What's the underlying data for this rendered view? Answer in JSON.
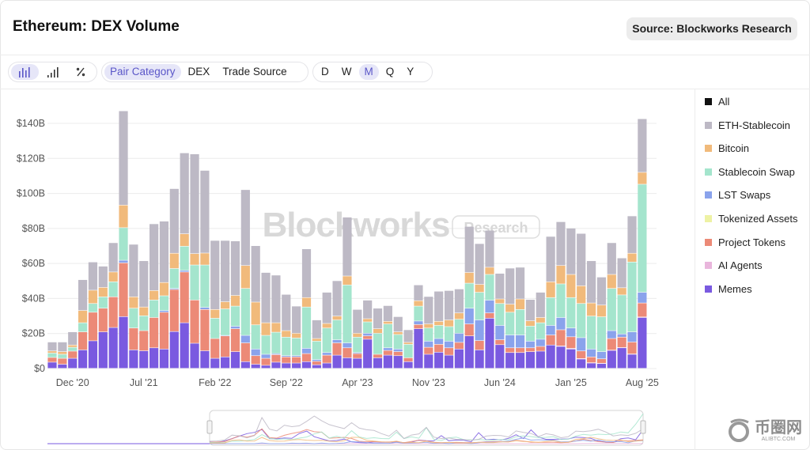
{
  "header": {
    "title": "Ethereum: DEX Volume",
    "source_label": "Source: Blockworks Research"
  },
  "toolbar": {
    "chart_types": [
      {
        "icon": "bar-chart-grouped-icon",
        "active": true
      },
      {
        "icon": "bar-chart-ascending-icon",
        "active": false
      },
      {
        "icon": "percent-icon",
        "active": false
      }
    ],
    "groupings": [
      {
        "label": "Pair Category",
        "active": true
      },
      {
        "label": "DEX",
        "active": false
      },
      {
        "label": "Trade Source",
        "active": false
      }
    ],
    "periods": [
      {
        "label": "D",
        "active": false
      },
      {
        "label": "W",
        "active": false
      },
      {
        "label": "M",
        "active": true
      },
      {
        "label": "Q",
        "active": false
      },
      {
        "label": "Y",
        "active": false
      }
    ]
  },
  "watermark": {
    "brand": "Blockworks",
    "tag": "Research"
  },
  "corner_logo": {
    "text": "币圈网",
    "sub": "ALIBTC.COM"
  },
  "chart_data": {
    "type": "bar",
    "stacked": true,
    "title": "",
    "xlabel": "",
    "ylabel": "",
    "ylim": [
      0,
      140
    ],
    "yticks": [
      "$0",
      "$20B",
      "$40B",
      "$60B",
      "$80B",
      "$100B",
      "$120B",
      "$140B"
    ],
    "ytick_values": [
      0,
      20,
      40,
      60,
      80,
      100,
      120,
      140
    ],
    "xticks": [
      "Dec '20",
      "Jul '21",
      "Feb '22",
      "Sep '22",
      "Apr '23",
      "Nov '23",
      "Jun '24",
      "Jan '25",
      "Aug '25"
    ],
    "xtick_categories": [
      "2020-12",
      "2021-07",
      "2022-02",
      "2022-09",
      "2023-04",
      "2023-11",
      "2024-06",
      "2025-01",
      "2025-08"
    ],
    "grid": true,
    "legend_placement": "right",
    "unit": "USD billions",
    "categories": [
      "2020-10",
      "2020-11",
      "2020-12",
      "2021-01",
      "2021-02",
      "2021-03",
      "2021-04",
      "2021-05",
      "2021-06",
      "2021-07",
      "2021-08",
      "2021-09",
      "2021-10",
      "2021-11",
      "2021-12",
      "2022-01",
      "2022-02",
      "2022-03",
      "2022-04",
      "2022-05",
      "2022-06",
      "2022-07",
      "2022-08",
      "2022-09",
      "2022-10",
      "2022-11",
      "2022-12",
      "2023-01",
      "2023-02",
      "2023-03",
      "2023-04",
      "2023-05",
      "2023-06",
      "2023-07",
      "2023-08",
      "2023-09",
      "2023-10",
      "2023-11",
      "2023-12",
      "2024-01",
      "2024-02",
      "2024-03",
      "2024-04",
      "2024-05",
      "2024-06",
      "2024-07",
      "2024-08",
      "2024-09",
      "2024-10",
      "2024-11",
      "2024-12",
      "2025-01",
      "2025-02",
      "2025-03",
      "2025-04",
      "2025-05",
      "2025-06",
      "2025-07",
      "2025-08"
    ],
    "legend_extra": {
      "name": "All",
      "color": "#111111"
    },
    "series": [
      {
        "name": "Memes",
        "color": "#7a5ae0",
        "values": [
          3.5,
          2.3,
          5.7,
          10.5,
          15.7,
          20.8,
          23.3,
          29.5,
          10.5,
          10,
          11.7,
          11,
          21,
          26,
          14.3,
          10,
          5.7,
          6.5,
          9.5,
          3.8,
          2.3,
          1.7,
          3.5,
          3,
          3,
          3.8,
          2,
          3,
          7.5,
          6,
          5.7,
          16.6,
          6,
          7.5,
          7.2,
          3.8,
          22.6,
          8,
          9.2,
          7.5,
          11,
          18.5,
          10.5,
          28.6,
          13.5,
          9,
          9,
          9.5,
          9.8,
          13.3,
          12.5,
          11,
          5.3,
          3,
          2.7,
          10.2,
          11.7,
          8,
          29
        ]
      },
      {
        "name": "AI Agents",
        "color": "#e9b6dc",
        "values": [
          0,
          0,
          0,
          0,
          0,
          0,
          0,
          0,
          0,
          0,
          0,
          0,
          0,
          0,
          0,
          0,
          0,
          0,
          0,
          0,
          0,
          0,
          0,
          0,
          0,
          0,
          0,
          0,
          0,
          0,
          0,
          0,
          0,
          0,
          0,
          0,
          0,
          0,
          0,
          0,
          0,
          0,
          0,
          0,
          0,
          0,
          0,
          0,
          0,
          0,
          0.3,
          0.4,
          0.3,
          0.2,
          0.2,
          0.2,
          0.2,
          0.2,
          0.3
        ]
      },
      {
        "name": "Project Tokens",
        "color": "#ec8a77",
        "values": [
          2.7,
          3.4,
          4.1,
          10.3,
          16.3,
          13.5,
          17.5,
          30.7,
          12.5,
          11.5,
          17.3,
          21,
          24,
          29,
          24.7,
          23.6,
          11.3,
          12,
          13.1,
          10.7,
          4.9,
          4,
          4.3,
          3.5,
          3.5,
          4.6,
          2,
          4.5,
          7,
          5.7,
          2.7,
          1.9,
          2,
          2.7,
          2.3,
          2.2,
          2.4,
          4,
          4.5,
          4.2,
          3.8,
          6.8,
          5.3,
          3,
          2.8,
          2.7,
          2.7,
          2.2,
          2.7,
          5.7,
          9.2,
          6.6,
          4.3,
          3.3,
          2.5,
          6.6,
          5.9,
          6.8,
          8
        ]
      },
      {
        "name": "Tokenized Assets",
        "color": "#eef2a4",
        "values": [
          0,
          0,
          0,
          0,
          0,
          0,
          0,
          0,
          0,
          0,
          0,
          0,
          0,
          0,
          0,
          0,
          0,
          0,
          0,
          0,
          0,
          0,
          0,
          0,
          0,
          0,
          0,
          0,
          0,
          0,
          0,
          0,
          0,
          0,
          0,
          0,
          0,
          0,
          0,
          0,
          0,
          0,
          0,
          0,
          0,
          0,
          0,
          0,
          0,
          0,
          0,
          0,
          0,
          0,
          0,
          0,
          0,
          0,
          0
        ]
      },
      {
        "name": "LST Swaps",
        "color": "#8aa3ec",
        "values": [
          0,
          0,
          0,
          0,
          0,
          0,
          0,
          1.5,
          0,
          0,
          0,
          1,
          0.6,
          0.9,
          0,
          1.2,
          0,
          0.3,
          1.4,
          4.3,
          3.8,
          2.3,
          0.6,
          0.7,
          0.7,
          3,
          1,
          1.5,
          1.8,
          2.8,
          0.6,
          1.5,
          0,
          1.5,
          1.5,
          0,
          2,
          3.5,
          3.3,
          3.8,
          5.2,
          9,
          11.8,
          7.3,
          8.2,
          7.3,
          7.3,
          3.8,
          4.1,
          5.5,
          7,
          5,
          7.6,
          4.5,
          4.1,
          4.5,
          1.8,
          5.8,
          6.1
        ]
      },
      {
        "name": "Stablecoin Swap",
        "color": "#a4e5cd",
        "values": [
          2.5,
          2.3,
          2.2,
          5.2,
          5,
          6.5,
          8.6,
          18.6,
          11.3,
          8.5,
          10,
          8.4,
          11.4,
          13.8,
          20,
          24.2,
          11.6,
          15.1,
          11.5,
          26.8,
          13.8,
          10.8,
          12.2,
          10.6,
          10.1,
          23.6,
          10.5,
          14,
          11.3,
          33.1,
          8.8,
          6.5,
          12,
          13.6,
          8.3,
          7.7,
          8.5,
          7.5,
          7.5,
          8.3,
          8,
          14.3,
          15.8,
          14.7,
          12.5,
          13,
          14.6,
          8.6,
          9.4,
          15.9,
          19.2,
          17.4,
          19.5,
          18.8,
          19.9,
          24.1,
          22.3,
          39.9,
          61.7
        ]
      },
      {
        "name": "Bitcoin",
        "color": "#f1ba7b",
        "values": [
          1.2,
          1.5,
          1.3,
          7,
          7.6,
          5.4,
          5.6,
          12.9,
          6.5,
          5,
          5.4,
          7.6,
          8.7,
          7.1,
          6.5,
          6.8,
          5,
          4.1,
          6.1,
          13.1,
          13,
          7.2,
          5.4,
          3.7,
          2.7,
          5.4,
          1.5,
          2.6,
          2.2,
          5.1,
          2.2,
          1.8,
          2.6,
          1.5,
          1.5,
          1.1,
          3.1,
          2.3,
          2.3,
          3.8,
          3.6,
          6.1,
          4.5,
          4.1,
          2.6,
          4.6,
          6,
          3,
          3,
          9,
          10.5,
          13.2,
          10.1,
          7.5,
          6.7,
          8,
          4.1,
          5,
          6.8
        ]
      },
      {
        "name": "ETH-Stablecoin",
        "color": "#bdb9c5",
        "values": [
          5.1,
          5.5,
          7.5,
          17.6,
          16.1,
          12.1,
          16.7,
          53.8,
          30,
          26.4,
          38.1,
          35,
          36.9,
          46.2,
          56.9,
          47.2,
          39.4,
          35,
          31.1,
          43.3,
          32.2,
          28.7,
          27.2,
          20.7,
          15.5,
          27.8,
          10.6,
          17.8,
          20.2,
          33.6,
          13.6,
          10.6,
          11.7,
          9,
          8.7,
          7.2,
          9,
          15.7,
          17.2,
          16.8,
          13.7,
          26.3,
          23.3,
          21.1,
          14.6,
          20.6,
          18.1,
          12.2,
          14.4,
          25.9,
          25,
          26.4,
          29.9,
          24.1,
          16,
          18.1,
          17,
          21.3,
          30.6
        ]
      }
    ]
  }
}
